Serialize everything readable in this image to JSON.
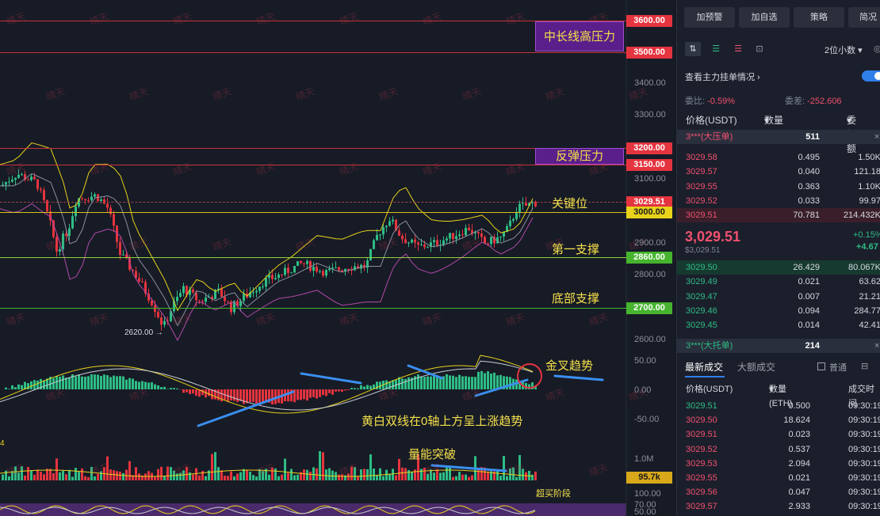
{
  "chart": {
    "price_axis": [
      {
        "label": "3400.00",
        "price": 3400
      },
      {
        "label": "3300.00",
        "price": 3300
      },
      {
        "label": "3100.00",
        "price": 3100
      },
      {
        "label": "2900.00",
        "price": 2900
      },
      {
        "label": "2800.00",
        "price": 2800
      },
      {
        "label": "2600.00",
        "price": 2600
      }
    ],
    "price_tags": [
      {
        "label": "3600.00",
        "price": 3600,
        "color": "#e4343e",
        "line": "#c8313a"
      },
      {
        "label": "3500.00",
        "price": 3500,
        "color": "#e4343e",
        "line": "#c8313a"
      },
      {
        "label": "3200.00",
        "price": 3200,
        "color": "#e4343e",
        "line": "#c8313a"
      },
      {
        "label": "3150.00",
        "price": 3150,
        "color": "#e4343e",
        "line": "#c8313a"
      },
      {
        "label": "3029.51",
        "price": 3029.51,
        "color": "#e4343e",
        "line": "#a0404a"
      },
      {
        "label": "3000.00",
        "price": 3000,
        "color": "#e8d21a",
        "line": "#d8c21a"
      },
      {
        "label": "2860.00",
        "price": 2860,
        "color": "#46b42e",
        "line": "#8fd43a"
      },
      {
        "label": "2700.00",
        "price": 2700,
        "color": "#46b42e",
        "line": "#46b42e"
      }
    ],
    "annotations": {
      "long_term_resistance": "中长线高压力",
      "rebound_resistance": "反弹压力",
      "key_level": "关键位",
      "first_support": "第一支撑",
      "bottom_support": "底部支撑",
      "golden_cross": "金叉趋势",
      "macd_note": "黄白双线在0轴上方呈上涨趋势",
      "volume_note": "量能突破",
      "overbought": "超买阶段"
    },
    "low_marker": "2620.00",
    "macd_axis": [
      "50.00",
      "0.00",
      "-50.00"
    ],
    "volume_axis": [
      "1.0M"
    ],
    "volume_tag": "95.7k",
    "rsi_axis": [
      "100.00",
      "70.00",
      "50.00"
    ],
    "left_edge_digit": "4",
    "watermark": "晴天"
  },
  "panel": {
    "buttons": [
      "加预警",
      "加自选",
      "策略",
      "简况"
    ],
    "decimals": "2位小数",
    "main_orders_title": "查看主力挂单情况",
    "ratio_label": "委比",
    "ratio_value": "-0.59%",
    "diff_label": "委差",
    "diff_value": "-252.606",
    "book_headers": {
      "price": "价格(USDT)",
      "qty": "数量 (ETH)",
      "total": "委托额"
    },
    "big_ask": {
      "label": "3***(大压单)",
      "value": "511"
    },
    "asks": [
      {
        "price": "3029.58",
        "qty": "0.495",
        "total": "1.50K"
      },
      {
        "price": "3029.57",
        "qty": "0.040",
        "total": "121.18"
      },
      {
        "price": "3029.55",
        "qty": "0.363",
        "total": "1.10K"
      },
      {
        "price": "3029.52",
        "qty": "0.033",
        "total": "99.97"
      },
      {
        "price": "3029.51",
        "qty": "70.781",
        "total": "214.432K"
      }
    ],
    "last_price": "3,029.51",
    "last_price_usd": "$3,029.51",
    "change_pct": "+0.15%",
    "change_abs": "+4.67",
    "bids": [
      {
        "price": "3029.50",
        "qty": "26.429",
        "total": "80.067K"
      },
      {
        "price": "3029.49",
        "qty": "0.021",
        "total": "63.62"
      },
      {
        "price": "3029.47",
        "qty": "0.007",
        "total": "21.21"
      },
      {
        "price": "3029.46",
        "qty": "0.094",
        "total": "284.77"
      },
      {
        "price": "3029.45",
        "qty": "0.014",
        "total": "42.41"
      }
    ],
    "big_bid": {
      "label": "3***(大托单)",
      "value": "214"
    },
    "trades_tab": "最新成交",
    "big_trades_tab": "大额成交",
    "normal_label": "普通",
    "trade_headers": {
      "price": "价格(USDT)",
      "qty": "数量(ETH)",
      "time": "成交时间"
    },
    "trades": [
      {
        "price": "3029.51",
        "qty": "0.500",
        "time": "09:30:19",
        "side": "buy"
      },
      {
        "price": "3029.50",
        "qty": "18.624",
        "time": "09:30:19",
        "side": "sell"
      },
      {
        "price": "3029.51",
        "qty": "0.023",
        "time": "09:30:19",
        "side": "sell"
      },
      {
        "price": "3029.52",
        "qty": "0.537",
        "time": "09:30:19",
        "side": "sell"
      },
      {
        "price": "3029.53",
        "qty": "2.094",
        "time": "09:30:19",
        "side": "sell"
      },
      {
        "price": "3029.55",
        "qty": "0.021",
        "time": "09:30:19",
        "side": "sell"
      },
      {
        "price": "3029.56",
        "qty": "0.047",
        "time": "09:30:19",
        "side": "sell"
      },
      {
        "price": "3029.57",
        "qty": "2.933",
        "time": "09:30:19",
        "side": "sell"
      }
    ]
  }
}
